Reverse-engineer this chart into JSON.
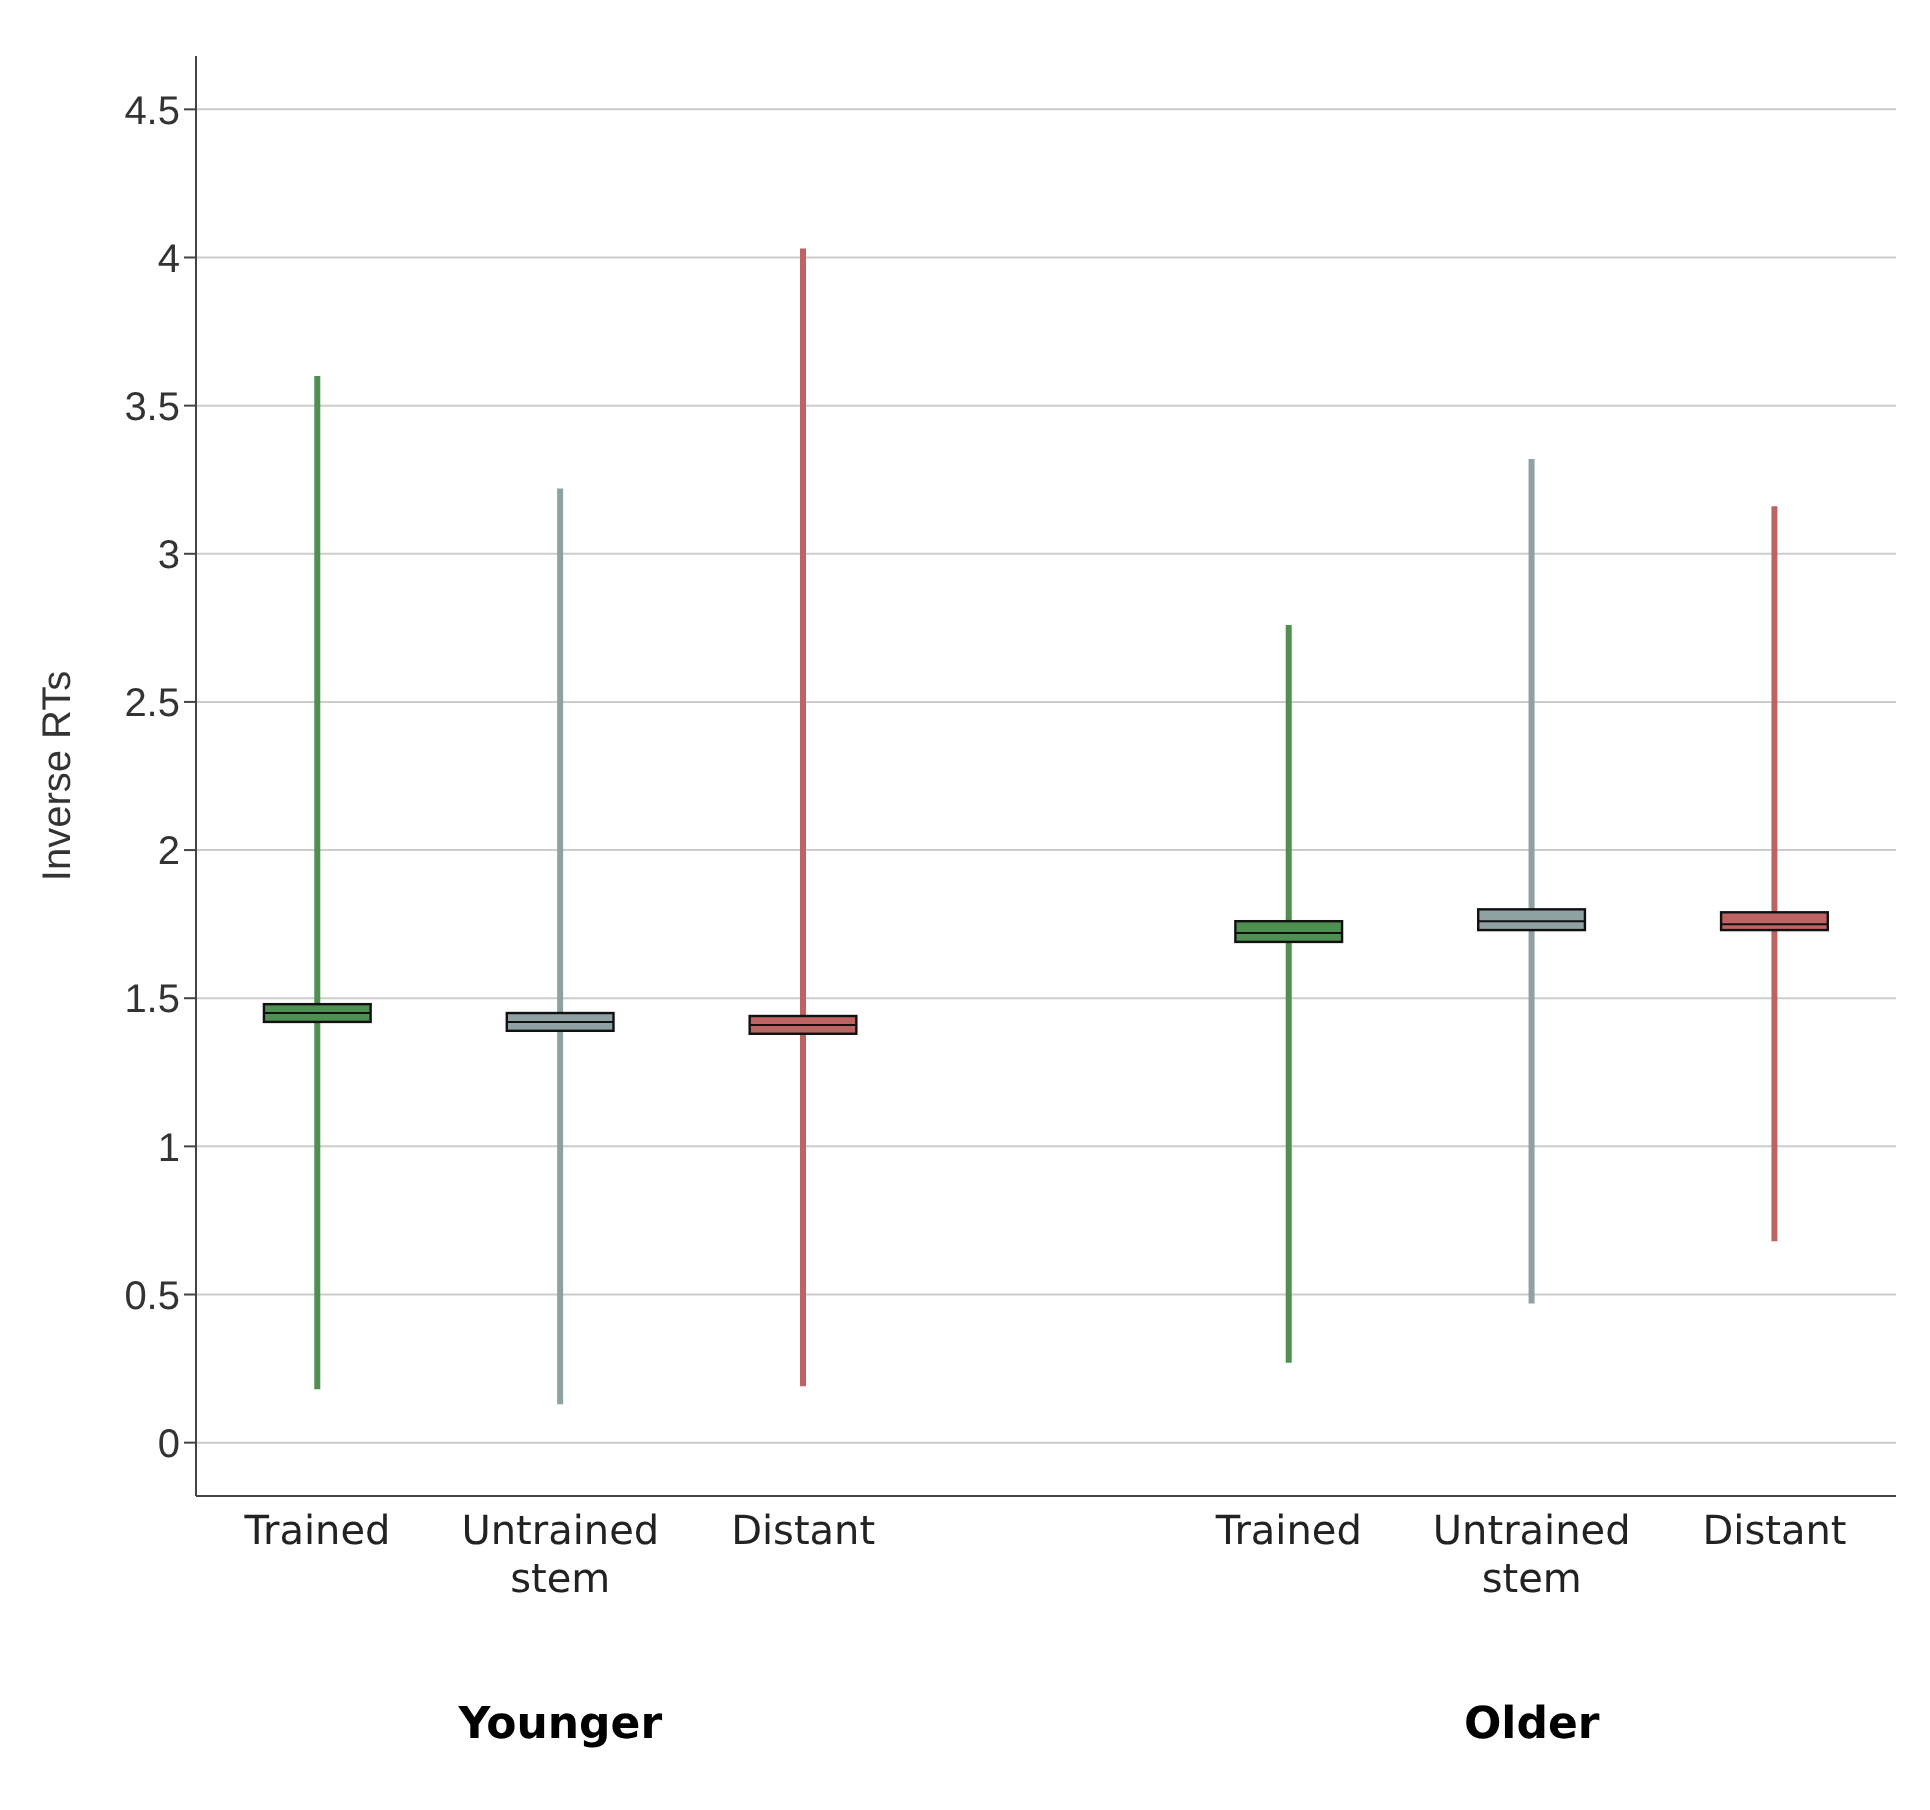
{
  "chart_data": {
    "type": "box",
    "ylabel": "Inverse RTs",
    "categories": [
      "Trained",
      "Untrained stem",
      "Distant",
      null,
      "Trained",
      "Untrained stem",
      "Distant"
    ],
    "colors": [
      "#4f8f4f",
      "#8fa1a3",
      "#bf6262",
      null,
      "#4f8f4f",
      "#8fa1a3",
      "#bf6262"
    ],
    "boxes": [
      {
        "low": 0.18,
        "q1": 1.42,
        "median": 1.45,
        "q3": 1.48,
        "high": 3.6
      },
      {
        "low": 0.13,
        "q1": 1.39,
        "median": 1.42,
        "q3": 1.45,
        "high": 3.22
      },
      {
        "low": 0.19,
        "q1": 1.38,
        "median": 1.41,
        "q3": 1.44,
        "high": 4.03
      },
      null,
      {
        "low": 0.27,
        "q1": 1.69,
        "median": 1.72,
        "q3": 1.76,
        "high": 2.76
      },
      {
        "low": 0.47,
        "q1": 1.73,
        "median": 1.76,
        "q3": 1.8,
        "high": 3.32
      },
      {
        "low": 0.68,
        "q1": 1.73,
        "median": 1.75,
        "q3": 1.79,
        "high": 3.16
      }
    ],
    "annotations": [
      "Younger",
      "Older"
    ],
    "ylim": [
      -0.18,
      4.68
    ],
    "yticks": [
      0,
      0.5,
      1,
      1.5,
      2,
      2.5,
      3,
      3.5,
      4,
      4.5
    ],
    "grid": "y"
  }
}
